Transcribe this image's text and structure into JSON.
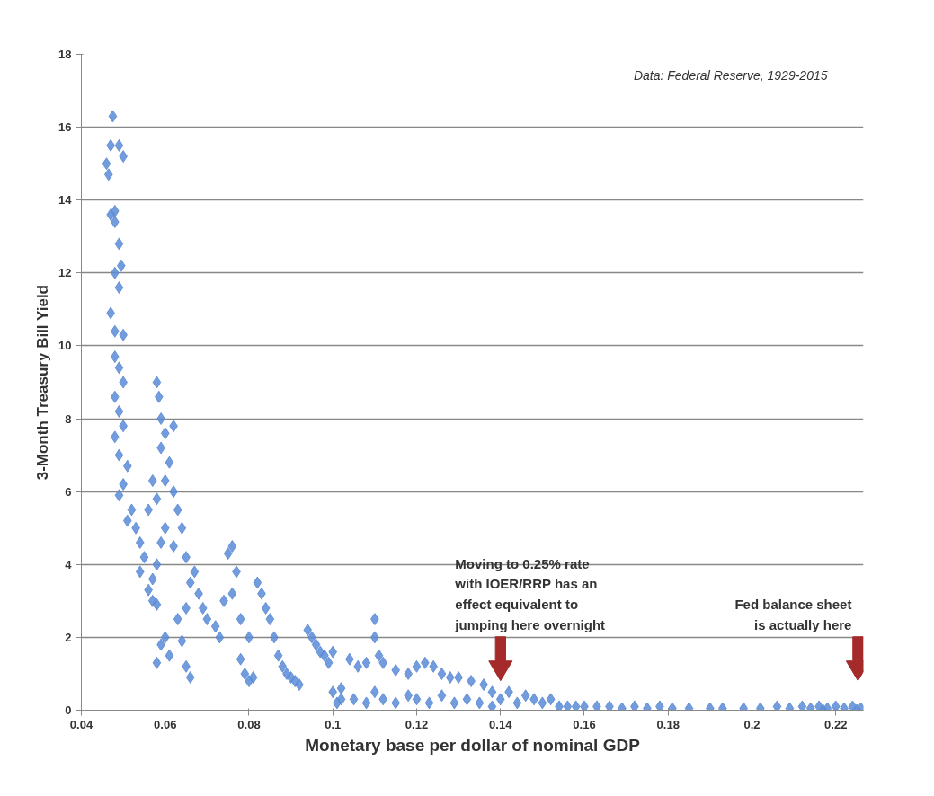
{
  "chart_data": {
    "type": "scatter",
    "xlabel": "Monetary base per dollar of nominal GDP",
    "ylabel": "3-Month Treasury Bill Yield",
    "annotations": [
      "Data: Federal Reserve, 1929-2015",
      "Moving to 0.25% rate\nwith IOER/RRP has an\neffect equivalent to\njumping here overnight",
      "Fed balance sheet\nis actually here"
    ],
    "xlim": [
      0.04,
      0.2266
    ],
    "xticks": [
      {
        "value": 0.04,
        "label": "0.04"
      },
      {
        "value": 0.06,
        "label": "0.06"
      },
      {
        "value": 0.08,
        "label": "0.08"
      },
      {
        "value": 0.1,
        "label": "0.1"
      },
      {
        "value": 0.12,
        "label": "0.12"
      },
      {
        "value": 0.14,
        "label": "0.14"
      },
      {
        "value": 0.16,
        "label": "0.16"
      },
      {
        "value": 0.18,
        "label": "0.18"
      },
      {
        "value": 0.2,
        "label": "0.2"
      },
      {
        "value": 0.22,
        "label": "0.22"
      }
    ],
    "ylim": [
      0,
      18
    ],
    "yticks": [
      0,
      2,
      4,
      6,
      8,
      10,
      12,
      14,
      16,
      18
    ],
    "grid": "y",
    "marker": "diamond",
    "series": [
      {
        "color": "#5b8bd6",
        "x": [
          0.0475,
          0.047,
          0.049,
          0.05,
          0.046,
          0.0465,
          0.047,
          0.048,
          0.048,
          0.049,
          0.0495,
          0.048,
          0.049,
          0.047,
          0.048,
          0.05,
          0.048,
          0.049,
          0.05,
          0.048,
          0.049,
          0.05,
          0.048,
          0.049,
          0.051,
          0.05,
          0.049,
          0.052,
          0.051,
          0.053,
          0.054,
          0.055,
          0.054,
          0.056,
          0.057,
          0.058,
          0.058,
          0.0585,
          0.059,
          0.06,
          0.062,
          0.059,
          0.061,
          0.06,
          0.057,
          0.058,
          0.056,
          0.062,
          0.063,
          0.064,
          0.062,
          0.065,
          0.06,
          0.059,
          0.058,
          0.057,
          0.058,
          0.059,
          0.06,
          0.061,
          0.063,
          0.064,
          0.065,
          0.066,
          0.065,
          0.066,
          0.067,
          0.068,
          0.069,
          0.07,
          0.072,
          0.073,
          0.074,
          0.075,
          0.076,
          0.077,
          0.076,
          0.078,
          0.078,
          0.079,
          0.08,
          0.081,
          0.08,
          0.082,
          0.083,
          0.084,
          0.085,
          0.086,
          0.087,
          0.088,
          0.089,
          0.09,
          0.091,
          0.092,
          0.094,
          0.095,
          0.096,
          0.097,
          0.098,
          0.099,
          0.1,
          0.101,
          0.102,
          0.1,
          0.104,
          0.106,
          0.108,
          0.11,
          0.11,
          0.111,
          0.112,
          0.115,
          0.118,
          0.12,
          0.122,
          0.124,
          0.126,
          0.128,
          0.13,
          0.133,
          0.136,
          0.138,
          0.102,
          0.105,
          0.108,
          0.11,
          0.112,
          0.115,
          0.118,
          0.12,
          0.123,
          0.126,
          0.129,
          0.132,
          0.135,
          0.138,
          0.14,
          0.142,
          0.144,
          0.146,
          0.148,
          0.15,
          0.152,
          0.154,
          0.156,
          0.158,
          0.16,
          0.163,
          0.166,
          0.169,
          0.172,
          0.175,
          0.178,
          0.181,
          0.185,
          0.19,
          0.193,
          0.198,
          0.202,
          0.206,
          0.209,
          0.212,
          0.214,
          0.216,
          0.218,
          0.22,
          0.222,
          0.224,
          0.226,
          0.225,
          0.217
        ],
        "values": [
          16.3,
          15.5,
          15.5,
          15.2,
          15.0,
          14.7,
          13.6,
          13.7,
          13.4,
          12.8,
          12.2,
          12.0,
          11.6,
          10.9,
          10.4,
          10.3,
          9.7,
          9.4,
          9.0,
          8.6,
          8.2,
          7.8,
          7.5,
          7.0,
          6.7,
          6.2,
          5.9,
          5.5,
          5.2,
          5.0,
          4.6,
          4.2,
          3.8,
          3.3,
          3.0,
          2.9,
          9.0,
          8.6,
          8.0,
          7.6,
          7.8,
          7.2,
          6.8,
          6.3,
          6.3,
          5.8,
          5.5,
          6.0,
          5.5,
          5.0,
          4.5,
          4.2,
          5.0,
          4.6,
          4.0,
          3.6,
          1.3,
          1.8,
          2.0,
          1.5,
          2.5,
          1.9,
          1.2,
          0.9,
          2.8,
          3.5,
          3.8,
          3.2,
          2.8,
          2.5,
          2.3,
          2.0,
          3.0,
          4.3,
          4.5,
          3.8,
          3.2,
          2.5,
          1.4,
          1.0,
          0.8,
          0.9,
          2.0,
          3.5,
          3.2,
          2.8,
          2.5,
          2.0,
          1.5,
          1.2,
          1.0,
          0.9,
          0.8,
          0.7,
          2.2,
          2.0,
          1.8,
          1.6,
          1.5,
          1.3,
          0.5,
          0.2,
          0.3,
          1.6,
          1.4,
          1.2,
          1.3,
          2.0,
          2.5,
          1.5,
          1.3,
          1.1,
          1.0,
          1.2,
          1.3,
          1.2,
          1.0,
          0.9,
          0.9,
          0.8,
          0.7,
          0.5,
          0.6,
          0.3,
          0.2,
          0.5,
          0.3,
          0.2,
          0.4,
          0.3,
          0.2,
          0.4,
          0.2,
          0.3,
          0.2,
          0.1,
          0.3,
          0.5,
          0.2,
          0.4,
          0.3,
          0.2,
          0.3,
          0.1,
          0.1,
          0.1,
          0.1,
          0.1,
          0.1,
          0.05,
          0.1,
          0.05,
          0.1,
          0.05,
          0.05,
          0.05,
          0.05,
          0.05,
          0.05,
          0.1,
          0.05,
          0.1,
          0.05,
          0.1,
          0.05,
          0.1,
          0.05,
          0.1,
          0.05,
          0.0,
          0.0
        ]
      }
    ]
  }
}
